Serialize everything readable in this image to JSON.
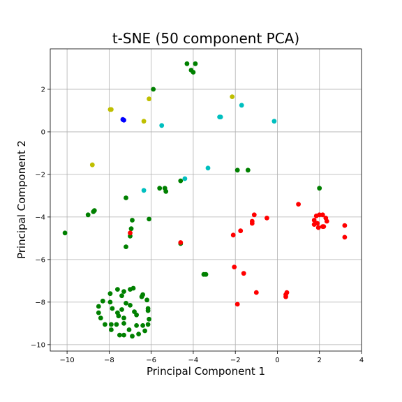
{
  "chart_data": {
    "type": "scatter",
    "title": "t-SNE (50 component PCA)",
    "xlabel": "Principal Component 1",
    "ylabel": "Principal Component 2",
    "xlim": [
      -10.8,
      4.0
    ],
    "ylim": [
      -10.3,
      3.9
    ],
    "xticks": [
      -10,
      -8,
      -6,
      -4,
      -2,
      0,
      2,
      4
    ],
    "yticks": [
      -10,
      -8,
      -6,
      -4,
      -2,
      0,
      2
    ],
    "grid": true,
    "colors": {
      "green": "#008000",
      "red": "#ff0000",
      "yellow": "#bfbf00",
      "cyan": "#00bfbf",
      "blue": "#0000ff"
    },
    "series": [
      {
        "color": "green",
        "points": [
          [
            -4.3,
            3.2
          ],
          [
            -3.9,
            3.2
          ],
          [
            -4.1,
            2.9
          ],
          [
            -4.0,
            2.8
          ],
          [
            -5.9,
            2.0
          ],
          [
            -1.9,
            -1.8
          ],
          [
            -1.4,
            -1.8
          ],
          [
            -5.6,
            -2.65
          ],
          [
            -5.35,
            -2.65
          ],
          [
            -5.3,
            -2.8
          ],
          [
            -4.6,
            -2.3
          ],
          [
            -8.7,
            -3.7
          ],
          [
            -8.75,
            -3.75
          ],
          [
            -9.0,
            -3.9
          ],
          [
            -7.2,
            -3.1
          ],
          [
            -10.1,
            -4.75
          ],
          [
            -6.9,
            -4.15
          ],
          [
            -6.1,
            -4.1
          ],
          [
            -6.95,
            -4.55
          ],
          [
            -7.0,
            -4.9
          ],
          [
            -7.2,
            -5.4
          ],
          [
            -4.6,
            -5.25
          ],
          [
            2.0,
            -2.65
          ],
          [
            -3.5,
            -6.7
          ],
          [
            -3.4,
            -6.7
          ],
          [
            -7.0,
            -7.4
          ],
          [
            -6.85,
            -7.35
          ],
          [
            -6.4,
            -7.65
          ],
          [
            -6.2,
            -7.9
          ],
          [
            -6.15,
            -8.3
          ],
          [
            -6.1,
            -8.8
          ],
          [
            -6.15,
            -9.05
          ],
          [
            -6.3,
            -9.35
          ],
          [
            -6.6,
            -9.5
          ],
          [
            -6.9,
            -9.6
          ],
          [
            -7.3,
            -9.55
          ],
          [
            -7.5,
            -9.55
          ],
          [
            -7.9,
            -9.3
          ],
          [
            -8.2,
            -9.05
          ],
          [
            -8.4,
            -8.75
          ],
          [
            -8.5,
            -8.5
          ],
          [
            -8.5,
            -8.2
          ],
          [
            -8.3,
            -7.95
          ],
          [
            -7.95,
            -7.6
          ],
          [
            -7.6,
            -7.4
          ],
          [
            -7.3,
            -7.5
          ],
          [
            -6.45,
            -7.75
          ],
          [
            -6.15,
            -8.4
          ],
          [
            -7.2,
            -8.05
          ],
          [
            -7.0,
            -8.15
          ],
          [
            -7.4,
            -8.35
          ],
          [
            -6.8,
            -8.45
          ],
          [
            -6.7,
            -8.6
          ],
          [
            -7.3,
            -8.75
          ],
          [
            -7.6,
            -8.5
          ],
          [
            -7.85,
            -8.3
          ],
          [
            -7.95,
            -8.0
          ],
          [
            -7.55,
            -8.65
          ],
          [
            -7.65,
            -9.05
          ],
          [
            -7.3,
            -9.0
          ],
          [
            -7.05,
            -9.3
          ],
          [
            -6.7,
            -9.1
          ],
          [
            -6.4,
            -9.1
          ],
          [
            -7.9,
            -9.05
          ],
          [
            -7.4,
            -7.7
          ]
        ]
      },
      {
        "color": "red",
        "points": [
          [
            -4.6,
            -5.2
          ],
          [
            -7.0,
            -4.75
          ],
          [
            -2.1,
            -4.85
          ],
          [
            -1.75,
            -4.65
          ],
          [
            -1.2,
            -4.2
          ],
          [
            -1.2,
            -4.3
          ],
          [
            -1.1,
            -3.9
          ],
          [
            -0.5,
            -4.05
          ],
          [
            1.0,
            -3.4
          ],
          [
            3.2,
            -4.4
          ],
          [
            3.2,
            -4.95
          ],
          [
            1.75,
            -4.15
          ],
          [
            1.85,
            -3.95
          ],
          [
            2.0,
            -3.9
          ],
          [
            2.15,
            -3.9
          ],
          [
            2.3,
            -4.05
          ],
          [
            2.35,
            -4.2
          ],
          [
            2.15,
            -4.45
          ],
          [
            1.95,
            -4.5
          ],
          [
            1.75,
            -4.35
          ],
          [
            1.9,
            -4.3
          ],
          [
            2.2,
            -4.45
          ],
          [
            -2.05,
            -6.35
          ],
          [
            -1.6,
            -6.65
          ],
          [
            -1.9,
            -8.1
          ],
          [
            -1.0,
            -7.55
          ],
          [
            0.45,
            -7.55
          ],
          [
            0.4,
            -7.65
          ],
          [
            0.4,
            -7.75
          ]
        ]
      },
      {
        "color": "yellow",
        "points": [
          [
            -7.95,
            1.05
          ],
          [
            -7.9,
            1.05
          ],
          [
            -6.1,
            1.55
          ],
          [
            -6.35,
            0.5
          ],
          [
            -2.15,
            1.65
          ],
          [
            -8.8,
            -1.55
          ]
        ]
      },
      {
        "color": "cyan",
        "points": [
          [
            -2.7,
            0.7
          ],
          [
            -2.75,
            0.7
          ],
          [
            -1.7,
            1.25
          ],
          [
            -0.15,
            0.5
          ],
          [
            -5.5,
            0.3
          ],
          [
            -4.4,
            -2.2
          ],
          [
            -6.35,
            -2.75
          ],
          [
            -3.3,
            -1.7
          ]
        ]
      },
      {
        "color": "blue",
        "points": [
          [
            -7.35,
            0.58
          ],
          [
            -7.3,
            0.55
          ]
        ]
      }
    ]
  }
}
